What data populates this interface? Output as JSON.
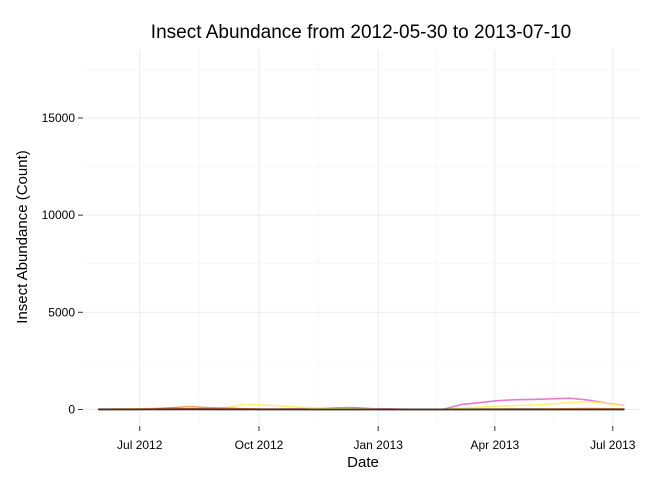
{
  "chart_data": {
    "type": "line",
    "title": "Insect Abundance from 2012-05-30 to 2013-07-10",
    "xlabel": "Date",
    "ylabel": "Insect Abundance (Count)",
    "xlim": [
      "2012-05-19",
      "2013-07-22"
    ],
    "ylim": [
      -800,
      18500
    ],
    "x_ticks": [
      {
        "value": "2012-07-01",
        "label": "Jul 2012"
      },
      {
        "value": "2012-10-01",
        "label": "Oct 2012"
      },
      {
        "value": "2013-01-01",
        "label": "Jan 2013"
      },
      {
        "value": "2013-04-01",
        "label": "Apr 2013"
      },
      {
        "value": "2013-07-01",
        "label": "Jul 2013"
      }
    ],
    "y_ticks": [
      0,
      5000,
      10000,
      15000
    ],
    "grid": true,
    "legend": "none",
    "series": [
      {
        "color": "#E87BD0",
        "x": [
          "2012-05-30",
          "2012-06-12",
          "2012-06-27",
          "2012-07-11",
          "2012-07-25",
          "2012-08-08",
          "2012-08-22",
          "2012-09-05",
          "2012-09-19",
          "2012-10-03",
          "2012-10-17",
          "2012-10-31",
          "2012-11-14",
          "2012-11-28",
          "2012-12-12",
          "2012-12-26",
          "2013-01-09",
          "2013-01-23",
          "2013-02-06",
          "2013-02-20",
          "2013-03-06",
          "2013-03-20",
          "2013-04-03",
          "2013-04-17",
          "2013-05-01",
          "2013-05-15",
          "2013-05-29",
          "2013-06-12",
          "2013-06-26",
          "2013-07-10"
        ],
        "y": [
          20,
          10,
          30,
          15,
          10,
          8,
          8,
          10,
          10,
          10,
          20,
          40,
          60,
          80,
          100,
          50,
          30,
          10,
          5,
          5,
          250,
          350,
          450,
          500,
          520,
          550,
          580,
          480,
          320,
          200
        ]
      },
      {
        "color": "#FFF176",
        "x": [
          "2012-05-30",
          "2012-06-12",
          "2012-06-27",
          "2012-07-11",
          "2012-07-25",
          "2012-08-08",
          "2012-08-22",
          "2012-09-05",
          "2012-09-19",
          "2012-10-03",
          "2012-10-17",
          "2012-10-31",
          "2012-11-14",
          "2012-11-28",
          "2012-12-12",
          "2012-12-26",
          "2013-01-09",
          "2013-01-23",
          "2013-02-06",
          "2013-02-20",
          "2013-03-06",
          "2013-03-20",
          "2013-04-03",
          "2013-04-17",
          "2013-05-01",
          "2013-05-15",
          "2013-05-29",
          "2013-06-12",
          "2013-06-26",
          "2013-07-10"
        ],
        "y": [
          10,
          5,
          30,
          60,
          40,
          20,
          30,
          80,
          260,
          240,
          180,
          120,
          80,
          40,
          30,
          20,
          10,
          5,
          5,
          5,
          60,
          120,
          170,
          200,
          230,
          280,
          350,
          400,
          300,
          180
        ]
      },
      {
        "color": "#F4A460",
        "x": [
          "2012-05-30",
          "2012-06-12",
          "2012-06-27",
          "2012-07-11",
          "2012-07-25",
          "2012-08-08",
          "2012-08-22",
          "2012-09-05",
          "2012-09-19",
          "2012-10-03",
          "2012-10-17",
          "2012-10-31",
          "2012-11-14",
          "2012-11-28",
          "2012-12-12",
          "2012-12-26",
          "2013-01-09",
          "2013-01-23",
          "2013-02-06",
          "2013-02-20",
          "2013-03-06",
          "2013-03-20",
          "2013-04-03",
          "2013-04-17",
          "2013-05-01",
          "2013-05-15",
          "2013-05-29",
          "2013-06-12",
          "2013-06-26",
          "2013-07-10"
        ],
        "y": [
          5,
          30,
          20,
          40,
          80,
          150,
          100,
          80,
          40,
          30,
          20,
          20,
          10,
          10,
          10,
          10,
          5,
          5,
          5,
          5,
          10,
          20,
          20,
          30,
          30,
          30,
          40,
          50,
          40,
          30
        ]
      },
      {
        "color": "#E4572E",
        "x": [
          "2012-05-30",
          "2012-06-12",
          "2012-06-27",
          "2012-07-11",
          "2012-07-25",
          "2012-08-08",
          "2012-08-22",
          "2012-09-05",
          "2012-09-19",
          "2012-10-03",
          "2012-10-17",
          "2012-10-31",
          "2012-11-14",
          "2012-11-28",
          "2012-12-12",
          "2012-12-26",
          "2013-01-09",
          "2013-01-23",
          "2013-02-06",
          "2013-02-20",
          "2013-03-06",
          "2013-03-20",
          "2013-04-03",
          "2013-04-17",
          "2013-05-01",
          "2013-05-15",
          "2013-05-29",
          "2013-06-12",
          "2013-06-26",
          "2013-07-10"
        ],
        "y": [
          5,
          10,
          10,
          20,
          60,
          30,
          50,
          30,
          20,
          10,
          10,
          10,
          10,
          10,
          10,
          10,
          5,
          5,
          5,
          5,
          10,
          10,
          10,
          10,
          10,
          10,
          10,
          10,
          10,
          10
        ]
      },
      {
        "color": "#8B5A2B",
        "x": [
          "2012-05-30",
          "2012-06-12",
          "2012-06-27",
          "2012-07-11",
          "2012-07-25",
          "2012-08-08",
          "2012-08-22",
          "2012-09-05",
          "2012-09-19",
          "2012-10-03",
          "2012-10-17",
          "2012-10-31",
          "2012-11-14",
          "2012-11-28",
          "2012-12-12",
          "2012-12-26",
          "2013-01-09",
          "2013-01-23",
          "2013-02-06",
          "2013-02-20",
          "2013-03-06",
          "2013-03-20",
          "2013-04-03",
          "2013-04-17",
          "2013-05-01",
          "2013-05-15",
          "2013-05-29",
          "2013-06-12",
          "2013-06-26",
          "2013-07-10"
        ],
        "y": [
          5,
          5,
          5,
          10,
          10,
          20,
          10,
          10,
          10,
          5,
          5,
          5,
          5,
          5,
          5,
          5,
          5,
          5,
          5,
          5,
          5,
          5,
          5,
          5,
          5,
          5,
          5,
          5,
          5,
          5
        ]
      },
      {
        "color": "#333333",
        "x": [
          "2012-05-30",
          "2012-06-12",
          "2012-06-27",
          "2012-07-11",
          "2012-07-25",
          "2012-08-08",
          "2012-08-22",
          "2012-09-05",
          "2012-09-19",
          "2012-10-03",
          "2012-10-17",
          "2012-10-31",
          "2012-11-14",
          "2012-11-28",
          "2012-12-12",
          "2012-12-26",
          "2013-01-09",
          "2013-01-23",
          "2013-02-06",
          "2013-02-20",
          "2013-03-06",
          "2013-03-20",
          "2013-04-03",
          "2013-04-17",
          "2013-05-01",
          "2013-05-15",
          "2013-05-29",
          "2013-06-12",
          "2013-06-26",
          "2013-07-10"
        ],
        "y": [
          2,
          2,
          2,
          3,
          3,
          5,
          3,
          3,
          3,
          2,
          2,
          2,
          2,
          2,
          2,
          2,
          2,
          2,
          2,
          2,
          2,
          2,
          2,
          2,
          2,
          2,
          2,
          2,
          2,
          2
        ]
      }
    ]
  }
}
